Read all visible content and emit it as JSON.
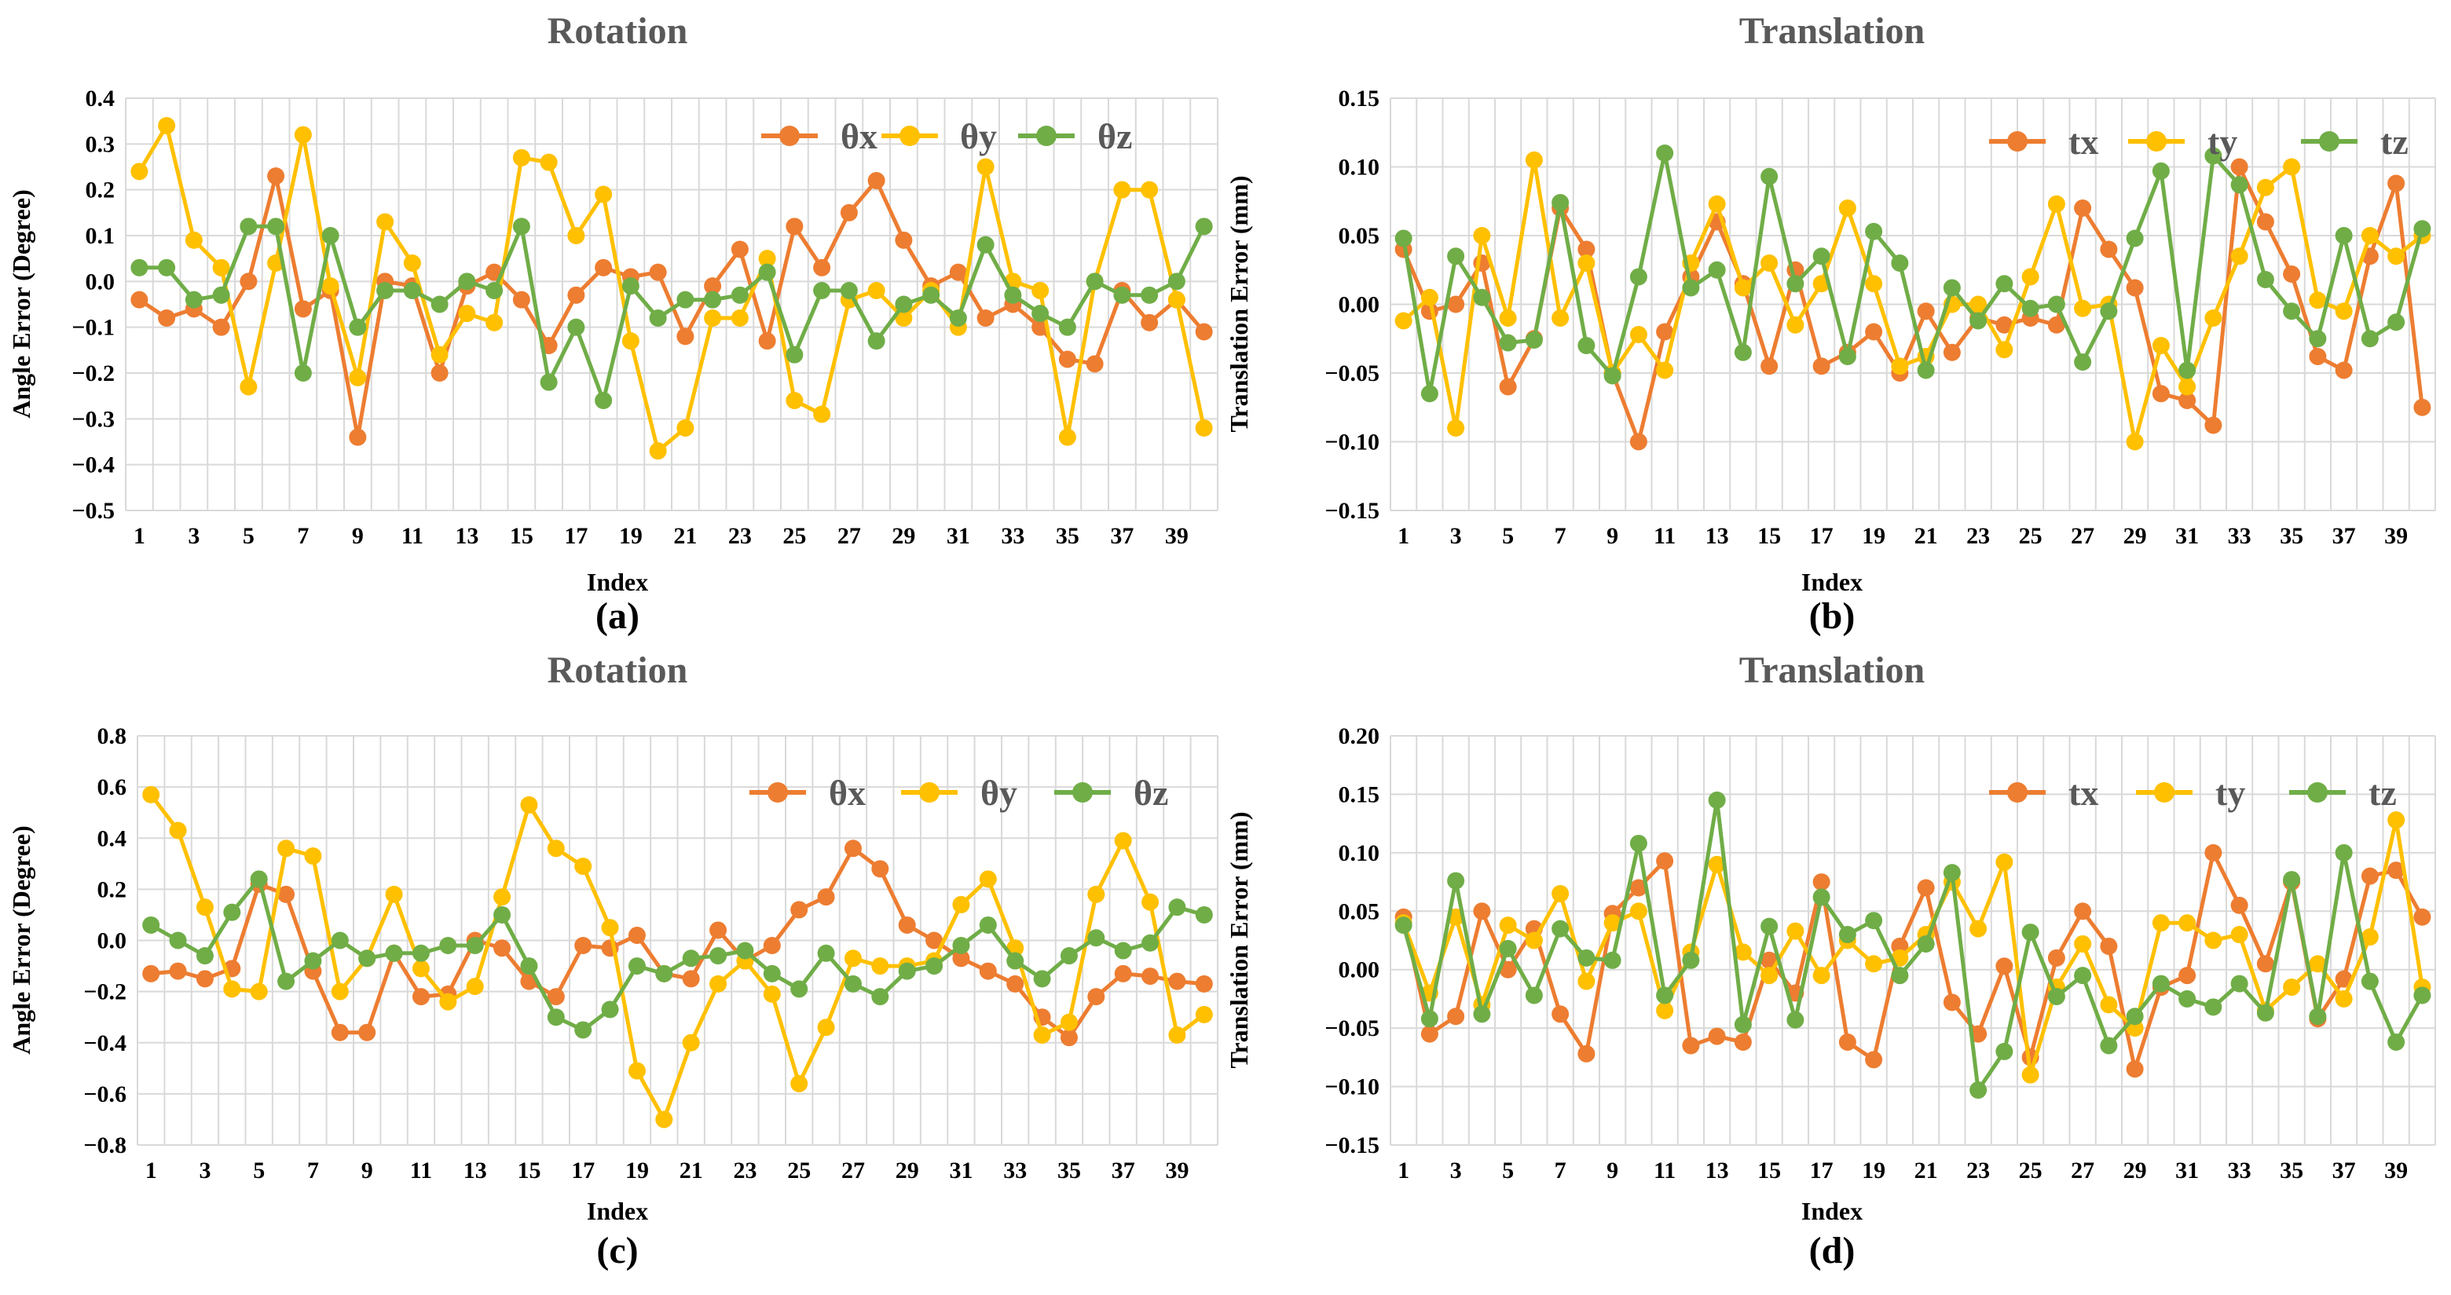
{
  "colors": {
    "s1": "#ED7D31",
    "s2": "#FFC000",
    "s3": "#70AD47",
    "grid": "#d9d9d9"
  },
  "chart_data": [
    {
      "type": "line",
      "panel_label": "(a)",
      "title": "Rotation",
      "xlabel": "Index",
      "ylabel": "Angle Error (Degree)",
      "ylim": [
        -0.5,
        0.4
      ],
      "yticks": [
        "−0.5",
        "−0.4",
        "−0.3",
        "−0.2",
        "−0.1",
        "0.0",
        "0.1",
        "0.2",
        "0.3",
        "0.4"
      ],
      "xticks": [
        "1",
        "3",
        "5",
        "7",
        "9",
        "11",
        "13",
        "15",
        "17",
        "19",
        "21",
        "23",
        "25",
        "27",
        "29",
        "31",
        "33",
        "35",
        "37",
        "39"
      ],
      "legend": "top-right",
      "series": [
        {
          "name": "θx",
          "color": "#ED7D31",
          "values": [
            -0.04,
            -0.08,
            -0.06,
            -0.1,
            0.0,
            0.23,
            -0.06,
            -0.02,
            -0.34,
            0.0,
            -0.01,
            -0.2,
            -0.01,
            0.02,
            -0.04,
            -0.14,
            -0.03,
            0.03,
            0.01,
            0.02,
            -0.12,
            -0.01,
            0.07,
            -0.13,
            0.12,
            0.03,
            0.15,
            0.22,
            0.09,
            -0.01,
            0.02,
            -0.08,
            -0.05,
            -0.1,
            -0.17,
            -0.18,
            -0.02,
            -0.09,
            -0.04,
            -0.11
          ]
        },
        {
          "name": "θy",
          "color": "#FFC000",
          "values": [
            0.24,
            0.34,
            0.09,
            0.03,
            -0.23,
            0.04,
            0.32,
            -0.01,
            -0.21,
            0.13,
            0.04,
            -0.16,
            -0.07,
            -0.09,
            0.27,
            0.26,
            0.1,
            0.19,
            -0.13,
            -0.37,
            -0.32,
            -0.08,
            -0.08,
            0.05,
            -0.26,
            -0.29,
            -0.04,
            -0.02,
            -0.08,
            -0.02,
            -0.1,
            0.25,
            0.0,
            -0.02,
            -0.34,
            0.0,
            0.2,
            0.2,
            -0.04,
            -0.32
          ]
        },
        {
          "name": "θz",
          "color": "#70AD47",
          "values": [
            0.03,
            0.03,
            -0.04,
            -0.03,
            0.12,
            0.12,
            -0.2,
            0.1,
            -0.1,
            -0.02,
            -0.02,
            -0.05,
            0.0,
            -0.02,
            0.12,
            -0.22,
            -0.1,
            -0.26,
            -0.01,
            -0.08,
            -0.04,
            -0.04,
            -0.03,
            0.02,
            -0.16,
            -0.02,
            -0.02,
            -0.13,
            -0.05,
            -0.03,
            -0.08,
            0.08,
            -0.03,
            -0.07,
            -0.1,
            0.0,
            -0.03,
            -0.03,
            0.0,
            0.12
          ]
        }
      ]
    },
    {
      "type": "line",
      "panel_label": "(b)",
      "title": "Translation",
      "xlabel": "Index",
      "ylabel": "Translation Error (mm)",
      "ylim": [
        -0.15,
        0.15
      ],
      "yticks": [
        "−0.15",
        "−0.10",
        "−0.05",
        "0.00",
        "0.05",
        "0.10",
        "0.15"
      ],
      "xticks": [
        "1",
        "3",
        "5",
        "7",
        "9",
        "11",
        "13",
        "15",
        "17",
        "19",
        "21",
        "23",
        "25",
        "27",
        "29",
        "31",
        "33",
        "35",
        "37",
        "39"
      ],
      "legend": "top-right",
      "series": [
        {
          "name": "tx",
          "color": "#ED7D31",
          "values": [
            0.04,
            -0.005,
            0.0,
            0.03,
            -0.06,
            -0.025,
            0.07,
            0.04,
            -0.05,
            -0.1,
            -0.02,
            0.02,
            0.06,
            0.015,
            -0.045,
            0.025,
            -0.045,
            -0.035,
            -0.02,
            -0.05,
            -0.005,
            -0.035,
            -0.01,
            -0.015,
            -0.01,
            -0.015,
            0.07,
            0.04,
            0.012,
            -0.065,
            -0.07,
            -0.088,
            0.1,
            0.06,
            0.022,
            -0.038,
            -0.048,
            0.035,
            0.088,
            -0.075
          ]
        },
        {
          "name": "ty",
          "color": "#FFC000",
          "values": [
            -0.012,
            0.005,
            -0.09,
            0.05,
            -0.01,
            0.105,
            -0.01,
            0.03,
            -0.05,
            -0.022,
            -0.048,
            0.03,
            0.073,
            0.012,
            0.03,
            -0.015,
            0.015,
            0.07,
            0.015,
            -0.045,
            -0.038,
            0.0,
            0.0,
            -0.033,
            0.02,
            0.073,
            -0.003,
            0.0,
            -0.1,
            -0.03,
            -0.06,
            -0.01,
            0.035,
            0.085,
            0.1,
            0.003,
            -0.005,
            0.05,
            0.035,
            0.05
          ]
        },
        {
          "name": "tz",
          "color": "#70AD47",
          "values": [
            0.048,
            -0.065,
            0.035,
            0.005,
            -0.028,
            -0.026,
            0.074,
            -0.03,
            -0.052,
            0.02,
            0.11,
            0.012,
            0.025,
            -0.035,
            0.093,
            0.015,
            0.035,
            -0.038,
            0.053,
            0.03,
            -0.048,
            0.012,
            -0.012,
            0.015,
            -0.003,
            0.0,
            -0.042,
            -0.005,
            0.048,
            0.097,
            -0.048,
            0.108,
            0.087,
            0.018,
            -0.005,
            -0.025,
            0.05,
            -0.025,
            -0.013,
            0.055
          ]
        }
      ]
    },
    {
      "type": "line",
      "panel_label": "(c)",
      "title": "Rotation",
      "xlabel": "Index",
      "ylabel": "Angle Error (Degree)",
      "ylim": [
        -0.8,
        0.8
      ],
      "yticks": [
        "−0.8",
        "−0.6",
        "−0.4",
        "−0.2",
        "0.0",
        "0.2",
        "0.4",
        "0.6",
        "0.8"
      ],
      "xticks": [
        "1",
        "3",
        "5",
        "7",
        "9",
        "11",
        "13",
        "15",
        "17",
        "19",
        "21",
        "23",
        "25",
        "27",
        "29",
        "31",
        "33",
        "35",
        "37",
        "39"
      ],
      "legend": "top-right",
      "series": [
        {
          "name": "θx",
          "color": "#ED7D31",
          "values": [
            -0.13,
            -0.12,
            -0.15,
            -0.11,
            0.22,
            0.18,
            -0.12,
            -0.36,
            -0.36,
            -0.05,
            -0.22,
            -0.21,
            0.0,
            -0.03,
            -0.16,
            -0.22,
            -0.02,
            -0.03,
            0.02,
            -0.13,
            -0.15,
            0.04,
            -0.08,
            -0.02,
            0.12,
            0.17,
            0.36,
            0.28,
            0.06,
            0.0,
            -0.07,
            -0.12,
            -0.17,
            -0.3,
            -0.38,
            -0.22,
            -0.13,
            -0.14,
            -0.16,
            -0.17
          ]
        },
        {
          "name": "θy",
          "color": "#FFC000",
          "values": [
            0.57,
            0.43,
            0.13,
            -0.19,
            -0.2,
            0.36,
            0.33,
            -0.2,
            -0.07,
            0.18,
            -0.11,
            -0.24,
            -0.18,
            0.17,
            0.53,
            0.36,
            0.29,
            0.05,
            -0.51,
            -0.7,
            -0.4,
            -0.17,
            -0.08,
            -0.21,
            -0.56,
            -0.34,
            -0.07,
            -0.1,
            -0.1,
            -0.08,
            0.14,
            0.24,
            -0.03,
            -0.37,
            -0.32,
            0.18,
            0.39,
            0.15,
            -0.37,
            -0.29
          ]
        },
        {
          "name": "θz",
          "color": "#70AD47",
          "values": [
            0.06,
            0.0,
            -0.06,
            0.11,
            0.24,
            -0.16,
            -0.08,
            0.0,
            -0.07,
            -0.05,
            -0.05,
            -0.02,
            -0.02,
            0.1,
            -0.1,
            -0.3,
            -0.35,
            -0.27,
            -0.1,
            -0.13,
            -0.07,
            -0.06,
            -0.04,
            -0.13,
            -0.19,
            -0.05,
            -0.17,
            -0.22,
            -0.12,
            -0.1,
            -0.02,
            0.06,
            -0.08,
            -0.15,
            -0.06,
            0.01,
            -0.04,
            -0.01,
            0.13,
            0.1
          ]
        }
      ]
    },
    {
      "type": "line",
      "panel_label": "(d)",
      "title": "Translation",
      "xlabel": "Index",
      "ylabel": "Translation Error (mm)",
      "ylim": [
        -0.15,
        0.2
      ],
      "yticks": [
        "−0.15",
        "−0.10",
        "−0.05",
        "0.00",
        "0.05",
        "0.10",
        "0.15",
        "0.20"
      ],
      "xticks": [
        "1",
        "3",
        "5",
        "7",
        "9",
        "11",
        "13",
        "15",
        "17",
        "19",
        "21",
        "23",
        "25",
        "27",
        "29",
        "31",
        "33",
        "35",
        "37",
        "39"
      ],
      "legend": "top-right",
      "series": [
        {
          "name": "tx",
          "color": "#ED7D31",
          "values": [
            0.045,
            -0.055,
            -0.04,
            0.05,
            0.0,
            0.035,
            -0.038,
            -0.072,
            0.048,
            0.07,
            0.093,
            -0.065,
            -0.057,
            -0.062,
            0.008,
            -0.02,
            0.075,
            -0.062,
            -0.077,
            0.02,
            0.07,
            -0.028,
            -0.055,
            0.003,
            -0.075,
            0.01,
            0.05,
            0.02,
            -0.085,
            -0.015,
            -0.005,
            0.1,
            0.055,
            0.005,
            0.075,
            -0.042,
            -0.008,
            0.08,
            0.085,
            0.045
          ]
        },
        {
          "name": "ty",
          "color": "#FFC000",
          "values": [
            0.04,
            -0.02,
            0.045,
            -0.03,
            0.038,
            0.025,
            0.065,
            -0.01,
            0.04,
            0.05,
            -0.035,
            0.015,
            0.09,
            0.015,
            -0.005,
            0.033,
            -0.005,
            0.025,
            0.005,
            0.01,
            0.03,
            0.075,
            0.035,
            0.092,
            -0.09,
            -0.015,
            0.022,
            -0.03,
            -0.05,
            0.04,
            0.04,
            0.025,
            0.03,
            -0.035,
            -0.015,
            0.005,
            -0.025,
            0.028,
            0.128,
            -0.015
          ]
        },
        {
          "name": "tz",
          "color": "#70AD47",
          "values": [
            0.038,
            -0.042,
            0.076,
            -0.038,
            0.018,
            -0.022,
            0.035,
            0.01,
            0.008,
            0.108,
            -0.022,
            0.008,
            0.145,
            -0.047,
            0.037,
            -0.043,
            0.062,
            0.03,
            0.042,
            -0.005,
            0.022,
            0.083,
            -0.103,
            -0.07,
            0.032,
            -0.023,
            -0.005,
            -0.065,
            -0.04,
            -0.012,
            -0.025,
            -0.032,
            -0.012,
            -0.037,
            0.077,
            -0.04,
            0.1,
            -0.01,
            -0.062,
            -0.022
          ]
        }
      ]
    }
  ]
}
